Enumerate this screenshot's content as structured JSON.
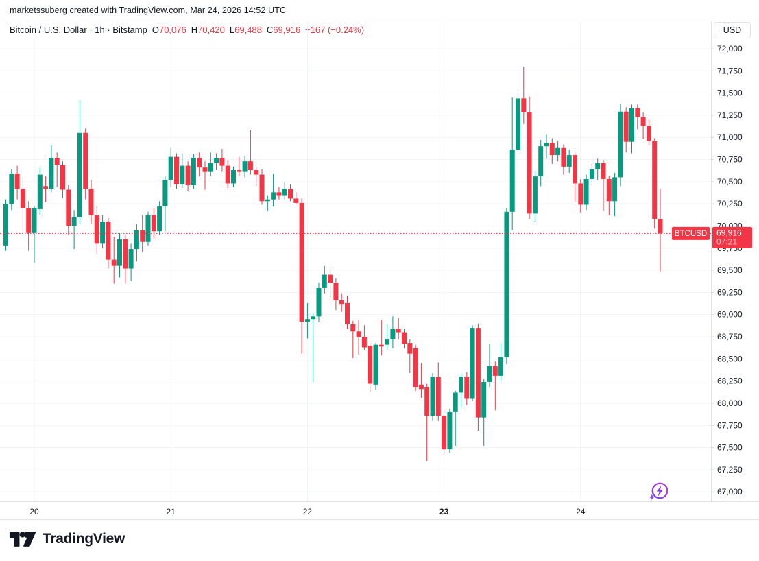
{
  "attribution": "marketssuberg created with TradingView.com, Mar 24, 2026 14:52 UTC",
  "header": {
    "symbol_title": "Bitcoin / U.S. Dollar · 1h · Bitstamp",
    "ohlc": {
      "o_label": "O",
      "o": "70,076",
      "h_label": "H",
      "h": "70,420",
      "l_label": "L",
      "l": "69,488",
      "c_label": "C",
      "c": "69,916",
      "change": "−167 (−0.24%)"
    }
  },
  "axis_right": {
    "currency_button": "USD"
  },
  "price_label": {
    "symbol_badge": "BTCUSD",
    "price": "69,916",
    "countdown": "07:21"
  },
  "logo_text": "TradingView",
  "colors": {
    "up": "#089981",
    "down": "#F23645",
    "grid": "#f0f3fa",
    "axis_border": "#e0e3eb",
    "tick": "#d1d4dc",
    "text": "#131722",
    "flag_bg": "#F23645",
    "flag_text": "#ffffff",
    "icon_purple_bolt": "#8d35e8",
    "icon_purple_spark": "#7a52f4",
    "icon_grad_a": "#7a3cf0",
    "icon_grad_b": "#c238d6"
  },
  "chart_data": {
    "type": "candlestick",
    "symbol": "BTCUSD",
    "title": "Bitcoin / U.S. Dollar",
    "interval": "1h",
    "exchange": "Bitstamp",
    "last_price": 69916,
    "ylim": [
      66890,
      72320
    ],
    "yticks": [
      67000,
      67250,
      67500,
      67750,
      68000,
      68250,
      68500,
      68750,
      69000,
      69250,
      69500,
      69750,
      70000,
      70250,
      70500,
      70750,
      71000,
      71250,
      71500,
      71750,
      72000
    ],
    "xticks": [
      {
        "label": "20",
        "i": 5,
        "bold": false
      },
      {
        "label": "21",
        "i": 29,
        "bold": false
      },
      {
        "label": "22",
        "i": 53,
        "bold": false
      },
      {
        "label": "23",
        "i": 77,
        "bold": true
      },
      {
        "label": "24",
        "i": 101,
        "bold": false
      }
    ],
    "candles": [
      [
        69780,
        70300,
        69720,
        70250
      ],
      [
        70250,
        70640,
        70180,
        70590
      ],
      [
        70590,
        70680,
        70300,
        70420
      ],
      [
        70420,
        70550,
        69950,
        70200
      ],
      [
        70200,
        70280,
        69720,
        69920
      ],
      [
        69920,
        70220,
        69580,
        70200
      ],
      [
        70190,
        70660,
        70120,
        70580
      ],
      [
        70450,
        70560,
        70270,
        70420
      ],
      [
        70420,
        70910,
        70380,
        70770
      ],
      [
        70770,
        70830,
        70440,
        70690
      ],
      [
        70690,
        70730,
        70320,
        70410
      ],
      [
        70410,
        70460,
        69900,
        70000
      ],
      [
        70000,
        70180,
        69740,
        70100
      ],
      [
        70100,
        71420,
        70020,
        71050
      ],
      [
        71050,
        71100,
        70300,
        70420
      ],
      [
        70420,
        70520,
        70020,
        70120
      ],
      [
        70120,
        70220,
        69680,
        69800
      ],
      [
        69800,
        70120,
        69750,
        70050
      ],
      [
        70050,
        70090,
        69520,
        69620
      ],
      [
        69620,
        69880,
        69350,
        69550
      ],
      [
        69550,
        69920,
        69420,
        69850
      ],
      [
        69850,
        69900,
        69350,
        69520
      ],
      [
        69520,
        69800,
        69380,
        69740
      ],
      [
        69740,
        70020,
        69600,
        69950
      ],
      [
        69950,
        70120,
        69700,
        69820
      ],
      [
        69820,
        70160,
        69780,
        70120
      ],
      [
        70120,
        70200,
        69860,
        69940
      ],
      [
        69940,
        70280,
        69900,
        70220
      ],
      [
        70220,
        70560,
        69940,
        70520
      ],
      [
        70520,
        70880,
        70440,
        70780
      ],
      [
        70780,
        70820,
        70420,
        70470
      ],
      [
        70470,
        70820,
        70430,
        70680
      ],
      [
        70680,
        70730,
        70390,
        70460
      ],
      [
        70460,
        70810,
        70420,
        70770
      ],
      [
        70770,
        70830,
        70560,
        70660
      ],
      [
        70660,
        70730,
        70410,
        70610
      ],
      [
        70610,
        70830,
        70560,
        70710
      ],
      [
        70710,
        70820,
        70630,
        70770
      ],
      [
        70770,
        70870,
        70610,
        70680
      ],
      [
        70680,
        70740,
        70430,
        70480
      ],
      [
        70480,
        70670,
        70440,
        70630
      ],
      [
        70630,
        70780,
        70560,
        70610
      ],
      [
        70610,
        70790,
        70550,
        70730
      ],
      [
        70730,
        71080,
        70580,
        70630
      ],
      [
        70630,
        70660,
        70450,
        70580
      ],
      [
        70580,
        70640,
        70240,
        70280
      ],
      [
        70280,
        70340,
        70170,
        70300
      ],
      [
        70300,
        70590,
        70220,
        70380
      ],
      [
        70380,
        70440,
        70300,
        70340
      ],
      [
        70340,
        70490,
        70300,
        70420
      ],
      [
        70420,
        70470,
        70280,
        70310
      ],
      [
        70310,
        70380,
        70240,
        70260
      ],
      [
        70260,
        70310,
        68560,
        68920
      ],
      [
        68920,
        69130,
        68730,
        68950
      ],
      [
        68950,
        69020,
        68240,
        68980
      ],
      [
        68980,
        69360,
        68920,
        69300
      ],
      [
        69300,
        69550,
        69240,
        69450
      ],
      [
        69450,
        69520,
        69200,
        69360
      ],
      [
        69360,
        69410,
        69050,
        69160
      ],
      [
        69160,
        69240,
        69030,
        69120
      ],
      [
        69130,
        69210,
        68840,
        68890
      ],
      [
        68890,
        68930,
        68510,
        68810
      ],
      [
        68810,
        68940,
        68550,
        68750
      ],
      [
        68750,
        68880,
        68600,
        68630
      ],
      [
        68650,
        68680,
        68130,
        68220
      ],
      [
        68210,
        68680,
        68150,
        68660
      ],
      [
        68660,
        68940,
        68540,
        68640
      ],
      [
        68660,
        68890,
        68600,
        68720
      ],
      [
        68720,
        68980,
        68620,
        68840
      ],
      [
        68840,
        68960,
        68720,
        68800
      ],
      [
        68800,
        68840,
        68620,
        68670
      ],
      [
        68680,
        68720,
        68340,
        68560
      ],
      [
        68620,
        68660,
        68140,
        68180
      ],
      [
        68210,
        68450,
        68060,
        68160
      ],
      [
        68180,
        68220,
        67350,
        67860
      ],
      [
        67860,
        68340,
        67800,
        68300
      ],
      [
        68300,
        68460,
        67800,
        67860
      ],
      [
        67860,
        67920,
        67420,
        67480
      ],
      [
        67480,
        67940,
        67440,
        67900
      ],
      [
        67900,
        68140,
        67520,
        68120
      ],
      [
        68120,
        68330,
        67960,
        68300
      ],
      [
        68300,
        68350,
        67980,
        68050
      ],
      [
        68050,
        68880,
        68030,
        68850
      ],
      [
        68850,
        68900,
        67690,
        67840
      ],
      [
        67840,
        68280,
        67520,
        68240
      ],
      [
        68240,
        68670,
        68180,
        68420
      ],
      [
        68420,
        68470,
        67920,
        68310
      ],
      [
        68310,
        68680,
        68250,
        68520
      ],
      [
        68520,
        70200,
        68440,
        70160
      ],
      [
        70160,
        71450,
        69950,
        70860
      ],
      [
        70860,
        71500,
        70660,
        71440
      ],
      [
        71440,
        71800,
        71150,
        71280
      ],
      [
        71280,
        71460,
        70080,
        70140
      ],
      [
        70140,
        70620,
        70050,
        70560
      ],
      [
        70560,
        70970,
        70450,
        70900
      ],
      [
        70900,
        71030,
        70760,
        70940
      ],
      [
        70940,
        70990,
        70700,
        70800
      ],
      [
        70800,
        70960,
        70730,
        70880
      ],
      [
        70880,
        70920,
        70580,
        70670
      ],
      [
        70670,
        70860,
        70600,
        70800
      ],
      [
        70800,
        70830,
        70270,
        70480
      ],
      [
        70480,
        70530,
        70150,
        70240
      ],
      [
        70240,
        70580,
        70180,
        70530
      ],
      [
        70530,
        70700,
        70460,
        70640
      ],
      [
        70640,
        70760,
        70520,
        70710
      ],
      [
        70710,
        70740,
        70170,
        70530
      ],
      [
        70530,
        70570,
        70120,
        70280
      ],
      [
        70280,
        70600,
        70110,
        70550
      ],
      [
        70550,
        71380,
        70450,
        71290
      ],
      [
        71290,
        71340,
        70830,
        70950
      ],
      [
        70950,
        71370,
        70820,
        71330
      ],
      [
        71330,
        71370,
        71090,
        71230
      ],
      [
        71230,
        71280,
        70980,
        71130
      ],
      [
        71130,
        71200,
        70910,
        70960
      ],
      [
        70960,
        70990,
        69970,
        70080
      ],
      [
        70076,
        70420,
        69488,
        69916
      ]
    ]
  }
}
